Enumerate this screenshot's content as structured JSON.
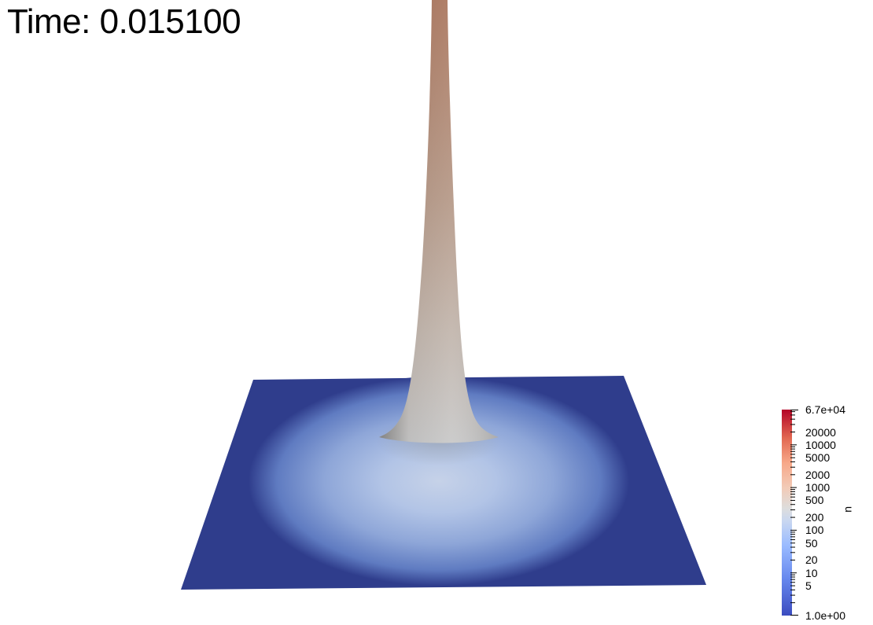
{
  "time_label": "Time: 0.015100",
  "colorbar": {
    "variable": "u",
    "scale": "log",
    "range": [
      1.0,
      67000
    ],
    "min_label": "1.0e+00",
    "max_label": "6.7e+04",
    "tick_labels": [
      "20000",
      "10000",
      "5000",
      "2000",
      "1000",
      "500",
      "200",
      "100",
      "50",
      "20",
      "10",
      "5"
    ],
    "colors": {
      "low": "#3b4cc0",
      "mid": "#dddddd",
      "high": "#b40426"
    }
  },
  "surface": {
    "plane_color": "#2f3d8c",
    "peak_color": "#b8816a"
  }
}
